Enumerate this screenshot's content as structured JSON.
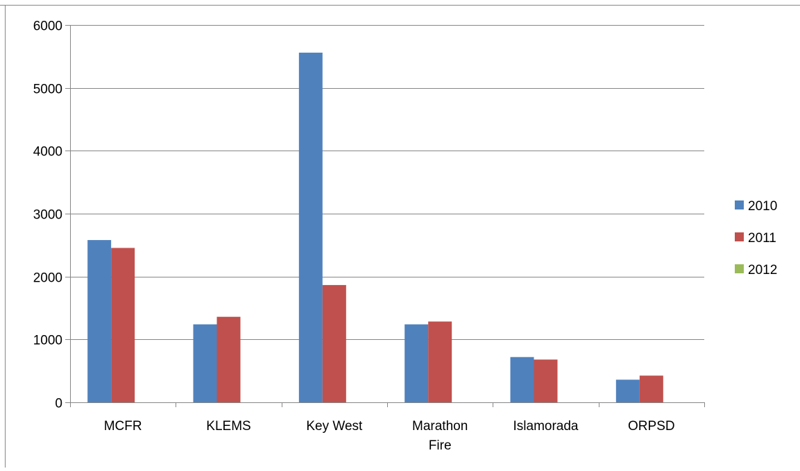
{
  "chart_data": {
    "type": "bar",
    "categories": [
      [
        "MCFR"
      ],
      [
        "KLEMS"
      ],
      [
        "Key West"
      ],
      [
        "Marathon",
        "Fire"
      ],
      [
        "Islamorada"
      ],
      [
        "ORPSD"
      ]
    ],
    "series": [
      {
        "name": "2010",
        "color": "#4F81BD",
        "values": [
          2580,
          1240,
          5560,
          1240,
          720,
          360
        ]
      },
      {
        "name": "2011",
        "color": "#C0504D",
        "values": [
          2455,
          1360,
          1865,
          1285,
          680,
          425
        ]
      },
      {
        "name": "2012",
        "color": "#9BBB59",
        "values": [
          0,
          0,
          0,
          0,
          0,
          0
        ]
      }
    ],
    "yticks": [
      "0",
      "1000",
      "2000",
      "3000",
      "4000",
      "5000",
      "6000"
    ],
    "ylim": [
      0,
      6000
    ],
    "grid": true,
    "legend": "right",
    "title": "",
    "xlabel": "",
    "ylabel": ""
  }
}
